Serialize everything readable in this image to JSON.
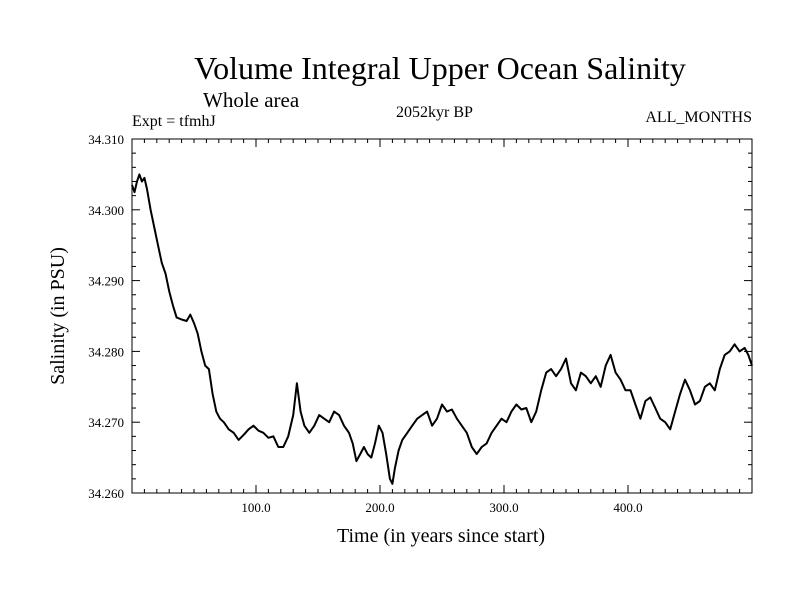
{
  "chart_data": {
    "type": "line",
    "title": "Volume Integral Upper Ocean Salinity",
    "subtitle": "Whole area",
    "experiment": "Expt = tfmhJ",
    "period": "2052kyr BP",
    "months": "ALL_MONTHS",
    "xlabel": "Time (in years since start)",
    "ylabel": "Salinity (in PSU)",
    "xlim": [
      0,
      500
    ],
    "ylim": [
      34.26,
      34.31
    ],
    "xticks": [
      100,
      200,
      300,
      400
    ],
    "xtick_labels": [
      "100.0",
      "200.0",
      "300.0",
      "400.0"
    ],
    "yticks": [
      34.26,
      34.27,
      34.28,
      34.29,
      34.3,
      34.31
    ],
    "ytick_labels": [
      "34.260",
      "34.270",
      "34.280",
      "34.290",
      "34.300",
      "34.310"
    ],
    "grid": false,
    "series": [
      {
        "name": "Salinity",
        "x": [
          0,
          2,
          4,
          6,
          8,
          10,
          12,
          15,
          18,
          21,
          24,
          27,
          30,
          33,
          36,
          40,
          44,
          47,
          50,
          53,
          56,
          59,
          62,
          65,
          68,
          71,
          74,
          78,
          82,
          86,
          90,
          94,
          98,
          102,
          106,
          110,
          114,
          118,
          122,
          126,
          130,
          133,
          136,
          139,
          143,
          147,
          151,
          155,
          159,
          163,
          167,
          171,
          175,
          178,
          181,
          184,
          187,
          190,
          193,
          196,
          199,
          202,
          205,
          208,
          210,
          212,
          215,
          218,
          222,
          226,
          230,
          234,
          238,
          242,
          246,
          250,
          254,
          258,
          262,
          266,
          270,
          274,
          278,
          282,
          286,
          290,
          294,
          298,
          302,
          306,
          310,
          314,
          318,
          322,
          326,
          330,
          334,
          338,
          342,
          346,
          350,
          354,
          358,
          362,
          366,
          370,
          374,
          378,
          382,
          386,
          390,
          394,
          398,
          402,
          406,
          410,
          414,
          418,
          422,
          426,
          430,
          434,
          438,
          442,
          446,
          450,
          454,
          458,
          462,
          466,
          470,
          474,
          478,
          482,
          486,
          490,
          494,
          497,
          500
        ],
        "values": [
          34.3035,
          34.3025,
          34.304,
          34.305,
          34.304,
          34.3045,
          34.303,
          34.3,
          34.2975,
          34.295,
          34.2925,
          34.291,
          34.2885,
          34.2865,
          34.2848,
          34.2845,
          34.2843,
          34.2852,
          34.284,
          34.2825,
          34.28,
          34.278,
          34.2775,
          34.274,
          34.2715,
          34.2705,
          34.27,
          34.269,
          34.2685,
          34.2675,
          34.2682,
          34.269,
          34.2695,
          34.2688,
          34.2685,
          34.2678,
          34.268,
          34.2665,
          34.2665,
          34.268,
          34.271,
          34.2755,
          34.2715,
          34.2695,
          34.2685,
          34.2695,
          34.271,
          34.2705,
          34.27,
          34.2715,
          34.271,
          34.2695,
          34.2685,
          34.267,
          34.2645,
          34.2655,
          34.2665,
          34.2655,
          34.265,
          34.267,
          34.2695,
          34.2685,
          34.2655,
          34.262,
          34.2613,
          34.2635,
          34.266,
          34.2675,
          34.2685,
          34.2695,
          34.2705,
          34.271,
          34.2715,
          34.2695,
          34.2705,
          34.2725,
          34.2715,
          34.2718,
          34.2705,
          34.2695,
          34.2685,
          34.2665,
          34.2655,
          34.2665,
          34.267,
          34.2685,
          34.2695,
          34.2705,
          34.27,
          34.2715,
          34.2725,
          34.2718,
          34.272,
          34.27,
          34.2715,
          34.2745,
          34.277,
          34.2775,
          34.2765,
          34.2775,
          34.279,
          34.2755,
          34.2745,
          34.277,
          34.2765,
          34.2755,
          34.2765,
          34.275,
          34.278,
          34.2795,
          34.277,
          34.276,
          34.2745,
          34.2745,
          34.2725,
          34.2705,
          34.273,
          34.2735,
          34.272,
          34.2705,
          34.27,
          34.269,
          34.2715,
          34.274,
          34.276,
          34.2745,
          34.2725,
          34.273,
          34.275,
          34.2755,
          34.2745,
          34.2775,
          34.2795,
          34.28,
          34.281,
          34.28,
          34.2805,
          34.2795,
          34.278
        ]
      }
    ]
  }
}
